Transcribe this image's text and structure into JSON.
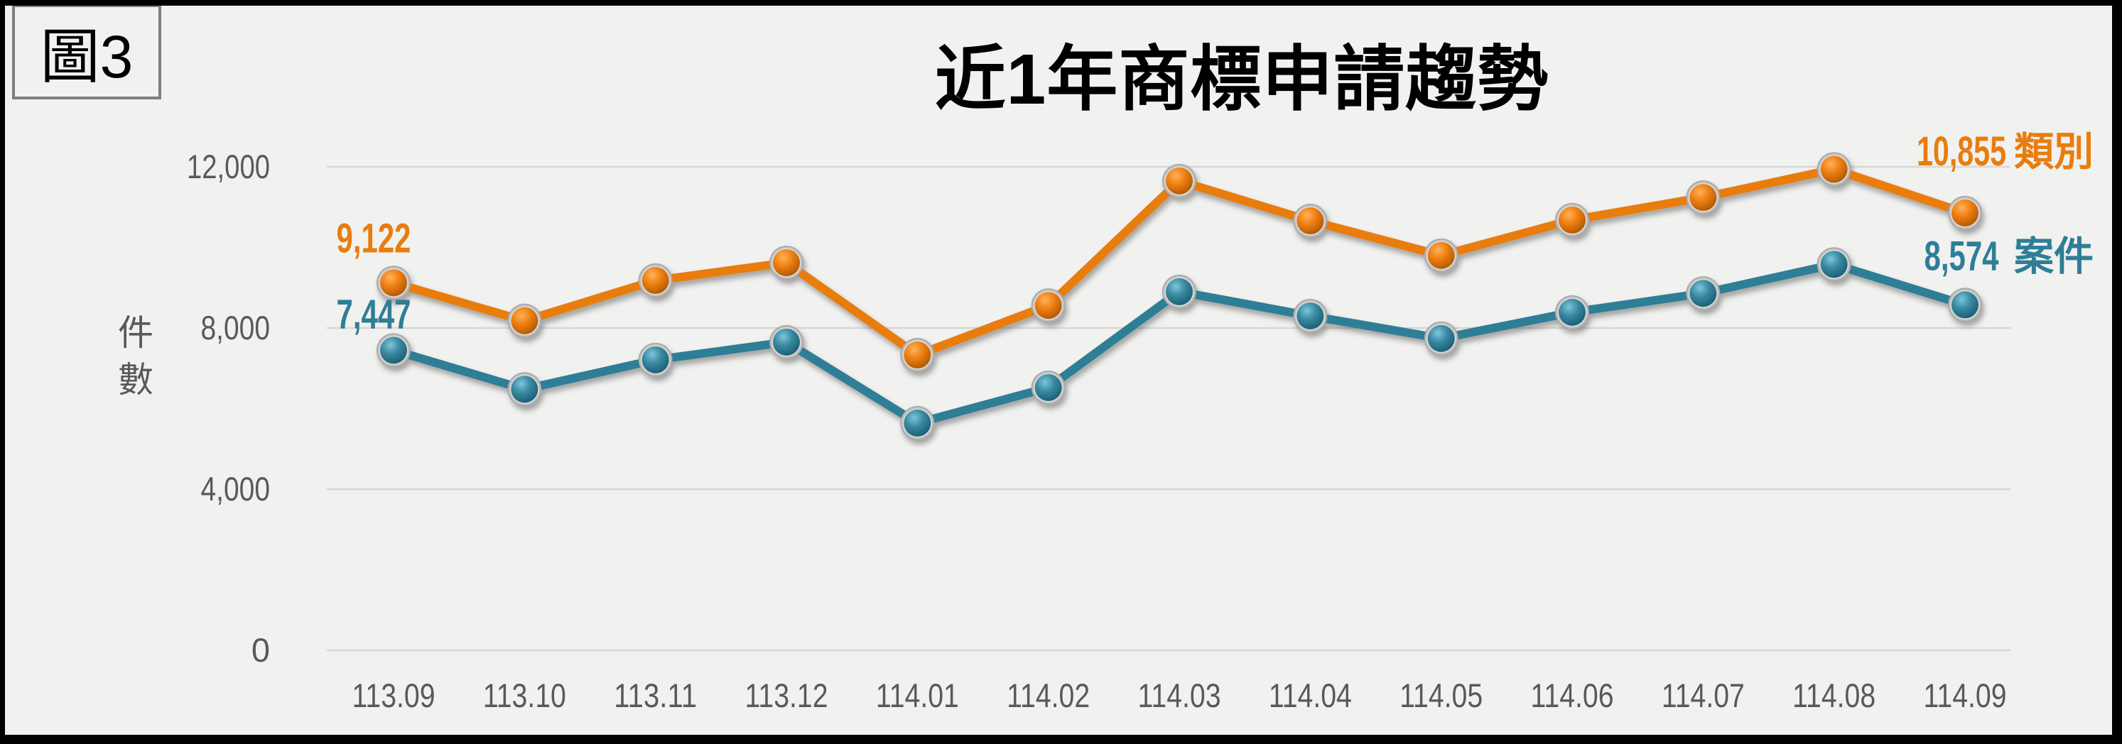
{
  "figure": {
    "label": "圖3"
  },
  "chart_data": {
    "type": "line",
    "title": "近1年商標申請趨勢",
    "xlabel": "",
    "ylabel": "件數",
    "categories": [
      "113.09",
      "113.10",
      "113.11",
      "113.12",
      "114.01",
      "114.02",
      "114.03",
      "114.04",
      "114.05",
      "114.06",
      "114.07",
      "114.08",
      "114.09"
    ],
    "series": [
      {
        "name": "類別",
        "color": "#E87D0E",
        "values": [
          9122,
          8180,
          9180,
          9620,
          7330,
          8560,
          11650,
          10660,
          9800,
          10680,
          11240,
          11940,
          10855
        ],
        "first_label": "9,122",
        "last_label": "10,855",
        "marker_gradient": {
          "highlight": "#FFB25C",
          "mid": "#EE7E10",
          "dark": "#A85400"
        }
      },
      {
        "name": "案件",
        "color": "#2E7E96",
        "values": [
          7447,
          6480,
          7210,
          7650,
          5640,
          6520,
          8900,
          8300,
          7740,
          8390,
          8860,
          9580,
          8574
        ],
        "first_label": "7,447",
        "last_label": "8,574",
        "marker_gradient": {
          "highlight": "#7CC6DA",
          "mid": "#38889F",
          "dark": "#17596F"
        }
      }
    ],
    "ylim": [
      0,
      12000
    ],
    "yticks": [
      0,
      4000,
      8000,
      12000
    ],
    "ytick_labels": [
      "0",
      "4,000",
      "8,000",
      "12,000"
    ],
    "grid": "horizontal",
    "legend_position": "right-end-of-lines",
    "colors": {
      "background": "#F1F1F0",
      "frame": "#000000",
      "figure_border": "#7F7F7F",
      "title": "#000000",
      "axis_text": "#595959",
      "gridline": "#D8D8D8",
      "marker_ring": "#FFFFFF",
      "marker_ring_edge": "#9E9E9E"
    }
  }
}
